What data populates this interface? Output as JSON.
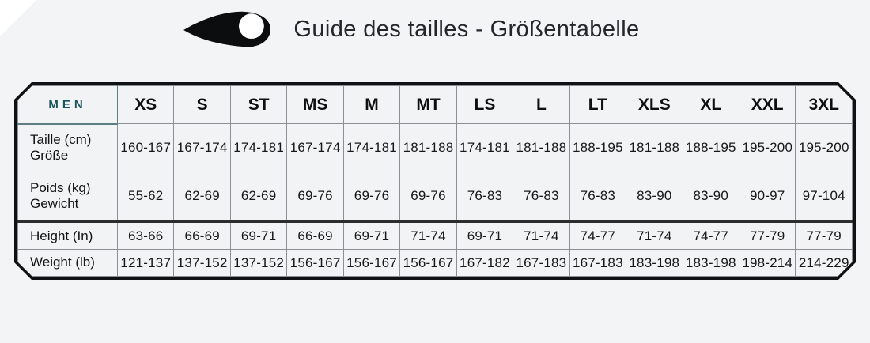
{
  "header": {
    "title": "Guide des tailles - Größentabelle"
  },
  "table": {
    "corner_label": "MEN",
    "sizes": [
      "XS",
      "S",
      "ST",
      "MS",
      "M",
      "MT",
      "LS",
      "L",
      "LT",
      "XLS",
      "XL",
      "XXL",
      "3XL"
    ],
    "rows": [
      {
        "label_lines": [
          "Taille (cm)",
          "Größe"
        ],
        "values": [
          "160-167",
          "167-174",
          "174-181",
          "167-174",
          "174-181",
          "181-188",
          "174-181",
          "181-188",
          "188-195",
          "181-188",
          "188-195",
          "195-200",
          "195-200"
        ]
      },
      {
        "label_lines": [
          "Poids (kg)",
          "Gewicht"
        ],
        "values": [
          "55-62",
          "62-69",
          "62-69",
          "69-76",
          "69-76",
          "69-76",
          "76-83",
          "76-83",
          "76-83",
          "83-90",
          "83-90",
          "90-97",
          "97-104"
        ]
      },
      {
        "label_lines": [
          "Height (In)"
        ],
        "values": [
          "63-66",
          "66-69",
          "69-71",
          "66-69",
          "69-71",
          "71-74",
          "69-71",
          "71-74",
          "74-77",
          "71-74",
          "74-77",
          "77-79",
          "77-79"
        ]
      },
      {
        "label_lines": [
          "Weight (lb)"
        ],
        "values": [
          "121-137",
          "137-152",
          "137-152",
          "156-167",
          "156-167",
          "156-167",
          "167-182",
          "167-183",
          "167-183",
          "183-198",
          "183-198",
          "198-214",
          "214-229"
        ]
      }
    ]
  },
  "colors": {
    "accent_teal": "#1b555f",
    "frame_black": "#101113",
    "grid_gray": "#8b9095",
    "background": "#f3f4f6"
  }
}
